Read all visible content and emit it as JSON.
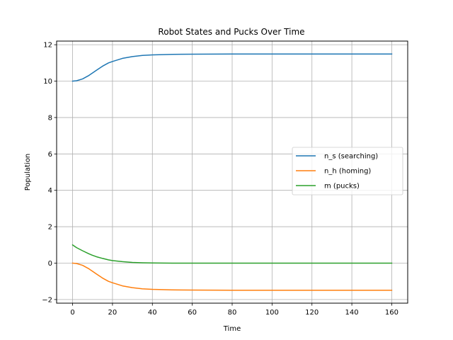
{
  "chart_data": {
    "type": "line",
    "title": "Robot States and Pucks Over Time",
    "xlabel": "Time",
    "ylabel": "Population",
    "xlim": [
      -8,
      168
    ],
    "ylim": [
      -2.2,
      12.2
    ],
    "xticks": [
      0,
      20,
      40,
      60,
      80,
      100,
      120,
      140,
      160
    ],
    "yticks": [
      -2,
      0,
      2,
      4,
      6,
      8,
      10,
      12
    ],
    "grid": true,
    "legend_position": "center-right",
    "series": [
      {
        "name": "n_s (searching)",
        "color": "#1f77b4",
        "x": [
          0,
          2,
          5,
          8,
          10,
          12,
          15,
          18,
          20,
          25,
          30,
          35,
          40,
          50,
          60,
          80,
          100,
          120,
          140,
          160
        ],
        "y": [
          10.0,
          10.02,
          10.12,
          10.3,
          10.45,
          10.6,
          10.82,
          11.0,
          11.08,
          11.25,
          11.35,
          11.41,
          11.44,
          11.47,
          11.48,
          11.49,
          11.49,
          11.49,
          11.49,
          11.49
        ]
      },
      {
        "name": "n_h (homing)",
        "color": "#ff7f0e",
        "x": [
          0,
          2,
          5,
          8,
          10,
          12,
          15,
          18,
          20,
          25,
          30,
          35,
          40,
          50,
          60,
          80,
          100,
          120,
          140,
          160
        ],
        "y": [
          0.0,
          -0.02,
          -0.12,
          -0.3,
          -0.45,
          -0.6,
          -0.82,
          -1.0,
          -1.08,
          -1.25,
          -1.35,
          -1.41,
          -1.44,
          -1.47,
          -1.48,
          -1.49,
          -1.49,
          -1.49,
          -1.49,
          -1.49
        ]
      },
      {
        "name": "m (pucks)",
        "color": "#2ca02c",
        "x": [
          0,
          2,
          5,
          8,
          10,
          12,
          15,
          18,
          20,
          25,
          30,
          35,
          40,
          50,
          60,
          80,
          100,
          120,
          140,
          160
        ],
        "y": [
          1.0,
          0.85,
          0.68,
          0.52,
          0.43,
          0.35,
          0.26,
          0.18,
          0.14,
          0.08,
          0.04,
          0.02,
          0.01,
          0.0,
          0.0,
          0.0,
          0.0,
          0.0,
          0.0,
          0.0
        ]
      }
    ]
  }
}
